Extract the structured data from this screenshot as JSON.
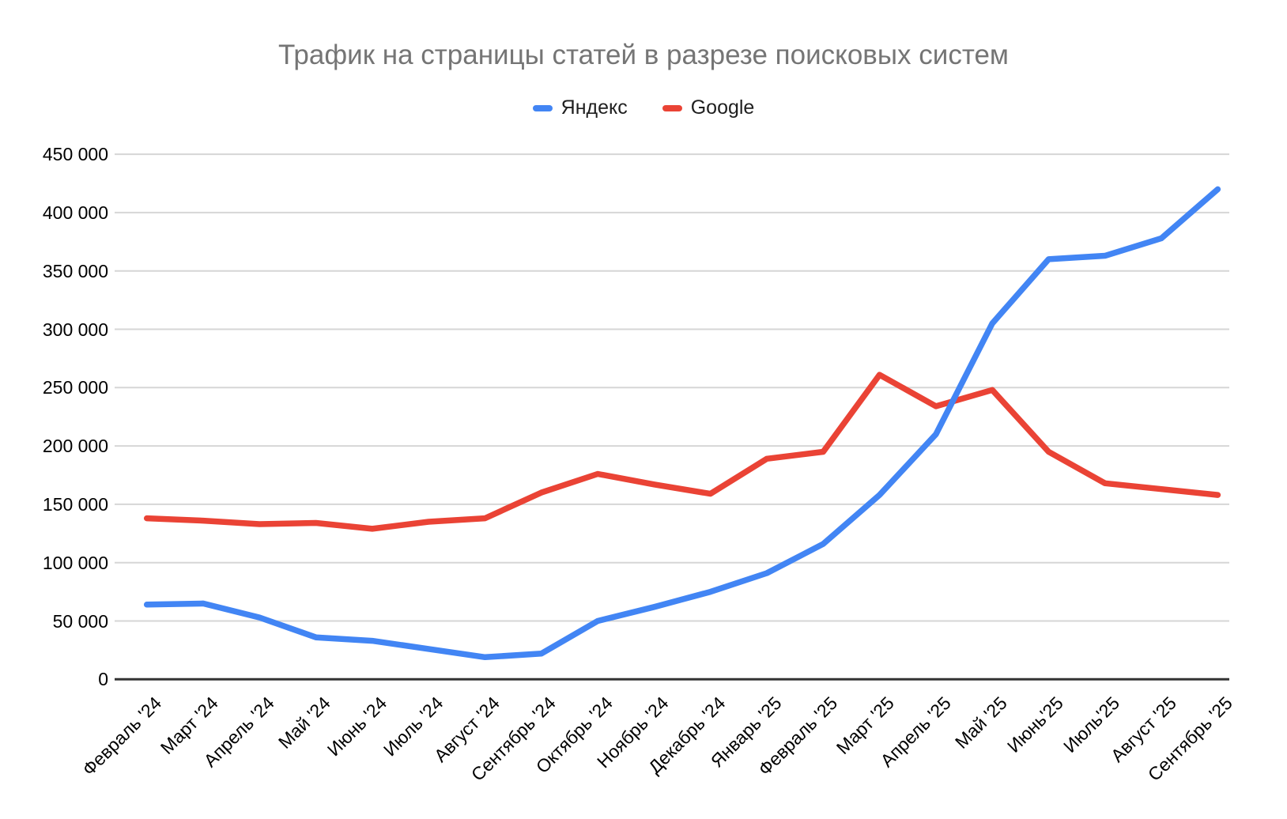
{
  "title": "Трафик на страницы статей в разрезе поисковых систем",
  "colors": {
    "yandex_blue": "#4285F4",
    "google_red": "#EA4335",
    "title_gray": "#757575",
    "gridline_gray": "#d6d6d6",
    "axis_line_dark": "#333333",
    "tick_label_black": "#000000"
  },
  "legend": {
    "items": [
      {
        "label": "Яндекс",
        "slug": "yandex",
        "color": "#4285F4"
      },
      {
        "label": "Google",
        "slug": "google",
        "color": "#EA4335"
      }
    ]
  },
  "chart_data": {
    "type": "line",
    "title": "Трафик на страницы статей в разрезе поисковых систем",
    "categories": [
      "Февраль '24",
      "Март '24",
      "Апрель '24",
      "Май '24",
      "Июнь '24",
      "Июль '24",
      "Август '24",
      "Сентябрь '24",
      "Октябрь '24",
      "Ноябрь '24",
      "Декабрь '24",
      "Январь '25",
      "Февраль '25",
      "Март '25",
      "Апрель '25",
      "Май '25",
      "Июнь'25",
      "Июль'25",
      "Август '25",
      "Сентябрь '25"
    ],
    "series": [
      {
        "name": "Яндекс",
        "slug": "yandex",
        "color": "#4285F4",
        "values": [
          64000,
          65000,
          53000,
          36000,
          33000,
          26000,
          19000,
          22000,
          50000,
          62000,
          75000,
          91000,
          116000,
          158000,
          210000,
          305000,
          360000,
          363000,
          378000,
          420000
        ]
      },
      {
        "name": "Google",
        "slug": "google",
        "color": "#EA4335",
        "values": [
          138000,
          136000,
          133000,
          134000,
          129000,
          135000,
          138000,
          160000,
          176000,
          167000,
          159000,
          189000,
          195000,
          261000,
          234000,
          248000,
          195000,
          168000,
          163000,
          158000
        ]
      }
    ],
    "y_axis": {
      "min": 0,
      "max": 450000,
      "tick_step": 50000,
      "tick_labels": [
        "0",
        "50 000",
        "100 000",
        "150 000",
        "200 000",
        "250 000",
        "300 000",
        "350 000",
        "400 000",
        "450 000"
      ]
    },
    "x_axis": {
      "label_rotation_deg": -45
    },
    "grid": true,
    "legend_position": "top"
  }
}
